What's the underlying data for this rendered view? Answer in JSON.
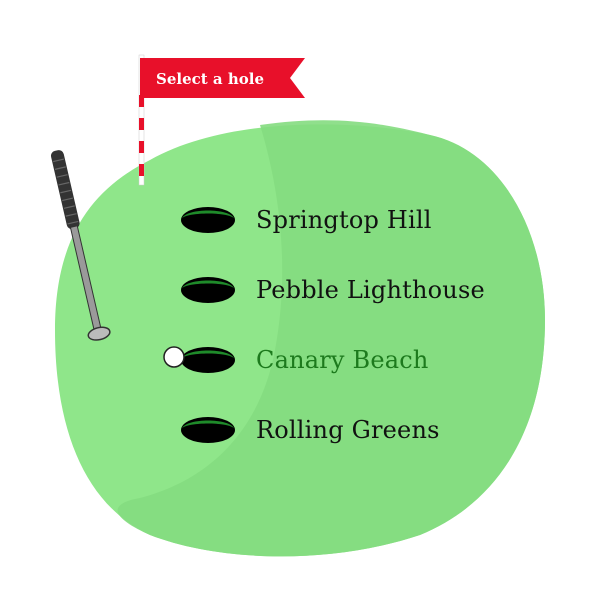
{
  "flag": {
    "label": "Select a hole"
  },
  "holes": [
    {
      "label": "Springtop Hill",
      "selected": false
    },
    {
      "label": "Pebble Lighthouse",
      "selected": false
    },
    {
      "label": "Canary Beach",
      "selected": true
    },
    {
      "label": "Rolling Greens",
      "selected": false
    }
  ],
  "colors": {
    "green_light": "#8fe68a",
    "green_dark": "#7fd67a",
    "flag_red": "#e8102a",
    "selected_text": "#1d7a1d",
    "hole_rim": "#1f8a2a"
  },
  "icons": {
    "club": "golf-club-icon",
    "ball": "golf-ball-icon",
    "flag": "flag-icon",
    "hole": "golf-hole-icon"
  }
}
